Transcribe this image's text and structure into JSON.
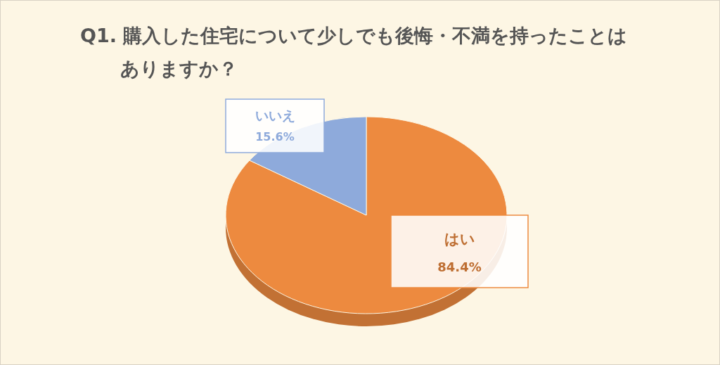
{
  "chart_data": {
    "type": "pie",
    "title": "Q1. 購入した住宅について少しでも後悔・不満を持ったことはありますか？",
    "categories": [
      "はい",
      "いいえ"
    ],
    "values": [
      84.4,
      15.6
    ],
    "colors": [
      "#ed8a3f",
      "#8eaadb"
    ],
    "value_labels": [
      "84.4%",
      "15.6%"
    ]
  }
}
